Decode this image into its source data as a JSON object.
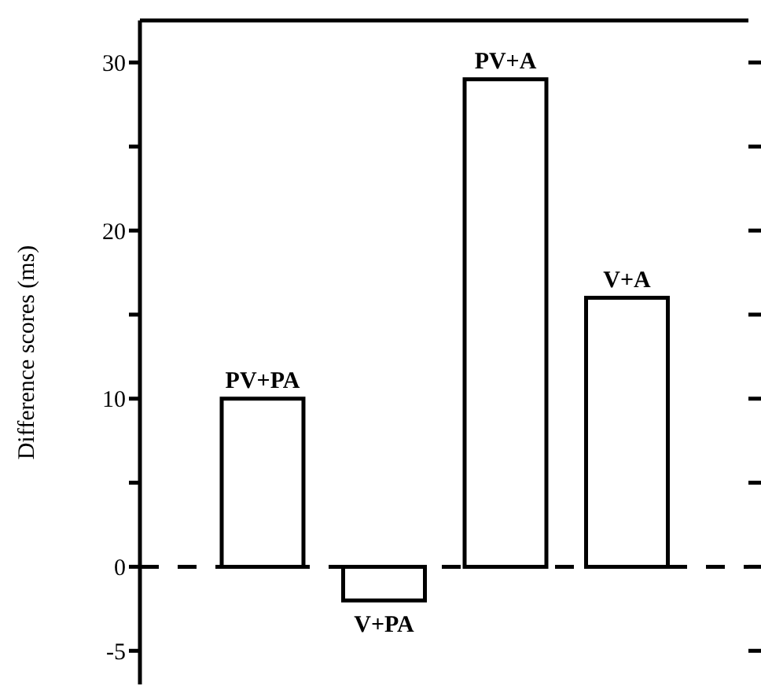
{
  "chart_data": {
    "type": "bar",
    "ylabel": "Difference scores (ms)",
    "categories": [
      "PV+PA",
      "V+PA",
      "PV+A",
      "V+A"
    ],
    "values": [
      10,
      -2,
      29,
      16
    ],
    "color": "#000000",
    "ylim": [
      -7,
      32.5
    ],
    "yticks": [
      -5,
      0,
      {
        "value": 5,
        "label": null
      },
      10,
      {
        "value": 15,
        "label": null
      },
      20,
      {
        "value": 25,
        "label": null
      },
      30
    ],
    "ref_lines": [
      {
        "axis": "y",
        "value": 0,
        "line_style": "dashed",
        "color": "#000000"
      }
    ],
    "tick_labels": "y",
    "grid": false,
    "legend": false
  }
}
